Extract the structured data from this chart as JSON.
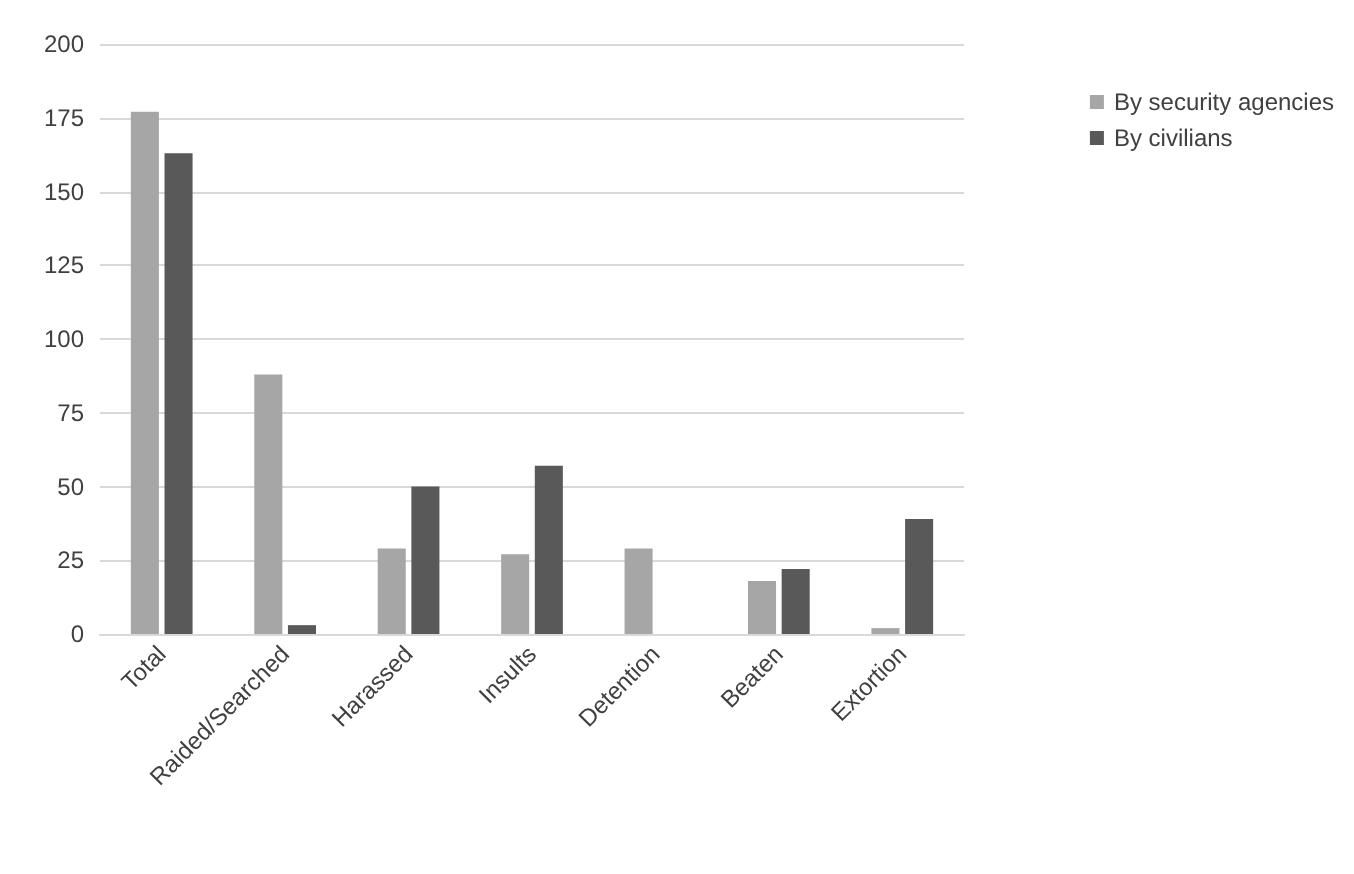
{
  "chart_data": {
    "type": "bar",
    "categories": [
      "Total",
      "Raided/Searched",
      "Harassed",
      "Insults",
      "Detention",
      "Beaten",
      "Extortion"
    ],
    "series": [
      {
        "name": "By security agencies",
        "color": "#a6a6a6",
        "values": [
          177,
          88,
          29,
          27,
          29,
          18,
          2
        ]
      },
      {
        "name": "By civilians",
        "color": "#595959",
        "values": [
          163,
          3,
          50,
          57,
          0,
          22,
          39
        ]
      }
    ],
    "ylim": [
      0,
      200
    ],
    "yticks": [
      0,
      25,
      50,
      75,
      100,
      125,
      150,
      175,
      200
    ],
    "grid": "y",
    "legend": "right"
  }
}
